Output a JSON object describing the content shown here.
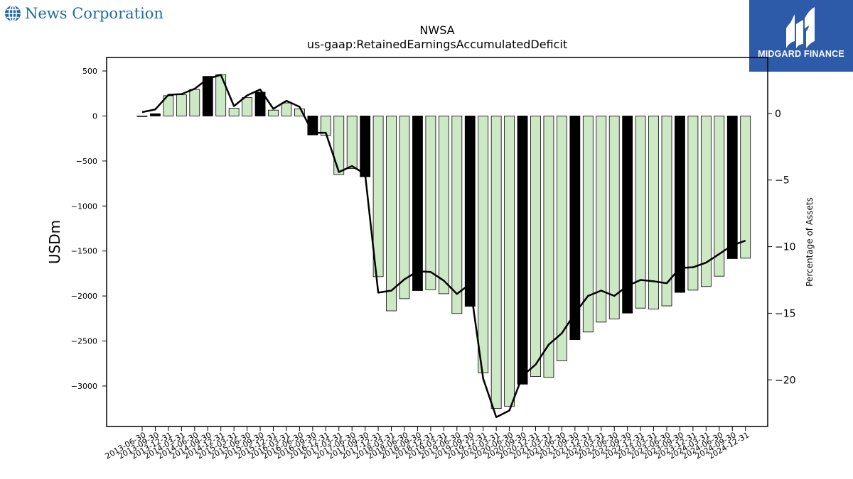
{
  "brand": {
    "name": "News Corporation",
    "icon": "globe-icon"
  },
  "partner_logo": {
    "text": "MIDGARD FINANCE",
    "icon": "midgard-mark-icon",
    "background": "#2d5aa9"
  },
  "chart_data": {
    "type": "bar",
    "title": "NWSA",
    "subtitle": "us-gaap:RetainedEarningsAccumulatedDeficit",
    "ylabel": "USDm",
    "y2label": "Percentage of Assets",
    "ylim": [
      -3450,
      650
    ],
    "y2lim": [
      -23.5,
      4.2
    ],
    "yticks": [
      500,
      0,
      -500,
      -1000,
      -1500,
      -2000,
      -2500,
      -3000
    ],
    "y2ticks": [
      0,
      -5,
      -10,
      -15,
      -20
    ],
    "grid": false,
    "colors": {
      "quarter": "#cce8c4",
      "fiscal_year_end": "#000000",
      "line": "#000000"
    },
    "categories": [
      "2013-06-30",
      "2013-09-30",
      "2013-12-31",
      "2014-03-31",
      "2014-06-30",
      "2014-09-30",
      "2014-12-31",
      "2015-03-31",
      "2015-06-30",
      "2015-09-30",
      "2015-12-31",
      "2016-03-31",
      "2016-06-30",
      "2016-09-30",
      "2016-12-31",
      "2017-03-31",
      "2017-06-30",
      "2017-09-30",
      "2017-12-31",
      "2018-03-31",
      "2018-06-30",
      "2018-09-30",
      "2018-12-31",
      "2019-03-31",
      "2019-06-30",
      "2019-09-30",
      "2019-12-31",
      "2020-03-31",
      "2020-06-30",
      "2020-09-30",
      "2020-12-31",
      "2021-03-31",
      "2021-06-30",
      "2021-09-30",
      "2021-12-31",
      "2022-03-31",
      "2022-06-30",
      "2022-09-30",
      "2022-12-31",
      "2023-03-31",
      "2023-06-30",
      "2023-09-30",
      "2023-12-31",
      "2024-03-31",
      "2024-06-30",
      "2024-09-30",
      "2024-12-31"
    ],
    "series": [
      {
        "kind": "bar",
        "values": [
          -5,
          25,
          225,
          235,
          295,
          440,
          460,
          85,
          205,
          265,
          65,
          145,
          80,
          -210,
          -215,
          -650,
          -585,
          -675,
          -1785,
          -2165,
          -2030,
          -1940,
          -1930,
          -1975,
          -2195,
          -2115,
          -2855,
          -3250,
          -3225,
          -2980,
          -2895,
          -2905,
          -2720,
          -2485,
          -2400,
          -2290,
          -2255,
          -2190,
          -2135,
          -2145,
          -2110,
          -1960,
          -1935,
          -1895,
          -1780,
          -1585,
          -1580
        ],
        "fiscal_year_end": [
          false,
          true,
          false,
          false,
          false,
          true,
          false,
          false,
          false,
          true,
          false,
          false,
          false,
          true,
          false,
          false,
          false,
          true,
          false,
          false,
          false,
          true,
          false,
          false,
          false,
          true,
          false,
          false,
          false,
          true,
          false,
          false,
          false,
          true,
          false,
          false,
          false,
          true,
          false,
          false,
          false,
          true,
          false,
          false,
          false,
          true,
          false
        ]
      },
      {
        "kind": "line",
        "axis": "right",
        "values": [
          0.1,
          0.3,
          1.4,
          1.45,
          1.85,
          2.6,
          2.9,
          0.55,
          1.35,
          1.8,
          0.35,
          0.95,
          0.5,
          -1.45,
          -1.45,
          -4.4,
          -3.95,
          -4.55,
          -13.45,
          -13.3,
          -12.45,
          -11.85,
          -11.9,
          -12.55,
          -13.55,
          -12.8,
          -19.9,
          -22.8,
          -22.3,
          -19.7,
          -18.85,
          -17.35,
          -16.5,
          -15,
          -13.7,
          -13.3,
          -13.7,
          -12.95,
          -12.5,
          -12.6,
          -12.75,
          -11.6,
          -11.55,
          -11.2,
          -10.55,
          -9.9,
          -9.55
        ]
      }
    ]
  }
}
